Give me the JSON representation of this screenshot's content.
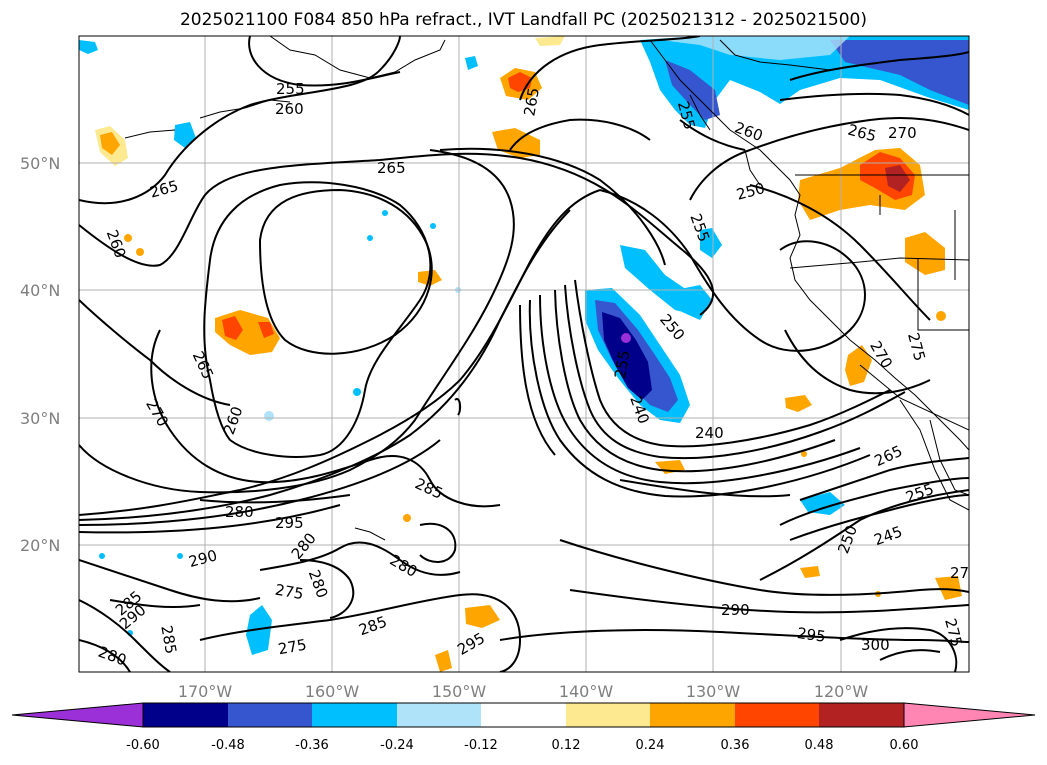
{
  "title": "2025021100 F084 850 hPa refract., IVT Landfall PC (2025021312 - 2025021500)",
  "lat_labels": [
    "50°N",
    "40°N",
    "30°N",
    "20°N"
  ],
  "lon_labels": [
    "170°W",
    "160°W",
    "150°W",
    "140°W",
    "130°W",
    "120°W"
  ],
  "colorbar": {
    "colors": [
      "#9b30d9",
      "#00008b",
      "#3556cf",
      "#00bfff",
      "#aee3fa",
      "#ffffff",
      "#fde98f",
      "#ffa500",
      "#ff4500",
      "#b22222",
      "#ff85b3"
    ],
    "ticks": [
      "-0.60",
      "-0.48",
      "-0.36",
      "-0.24",
      "-0.12",
      "0.12",
      "0.24",
      "0.36",
      "0.48",
      "0.60"
    ]
  },
  "contour_labels": [
    {
      "text": "255"
    },
    {
      "text": "260"
    },
    {
      "text": "265"
    },
    {
      "text": "265"
    },
    {
      "text": "265"
    },
    {
      "text": "260"
    },
    {
      "text": "265"
    },
    {
      "text": "270"
    },
    {
      "text": "260"
    },
    {
      "text": "260"
    },
    {
      "text": "265"
    },
    {
      "text": "270"
    },
    {
      "text": "250"
    },
    {
      "text": "255"
    },
    {
      "text": "250"
    },
    {
      "text": "255"
    },
    {
      "text": "240"
    },
    {
      "text": "280"
    },
    {
      "text": "295"
    },
    {
      "text": "285"
    },
    {
      "text": "290"
    },
    {
      "text": "280"
    },
    {
      "text": "280"
    },
    {
      "text": "280"
    },
    {
      "text": "275"
    },
    {
      "text": "285"
    },
    {
      "text": "290"
    },
    {
      "text": "285"
    },
    {
      "text": "280"
    },
    {
      "text": "275"
    },
    {
      "text": "285"
    },
    {
      "text": "295"
    },
    {
      "text": "290"
    },
    {
      "text": "295"
    },
    {
      "text": "300"
    },
    {
      "text": "265"
    },
    {
      "text": "255"
    },
    {
      "text": "245"
    },
    {
      "text": "250"
    },
    {
      "text": "270"
    },
    {
      "text": "275"
    },
    {
      "text": "275"
    },
    {
      "text": "27"
    },
    {
      "text": "255"
    },
    {
      "text": "240"
    }
  ]
}
